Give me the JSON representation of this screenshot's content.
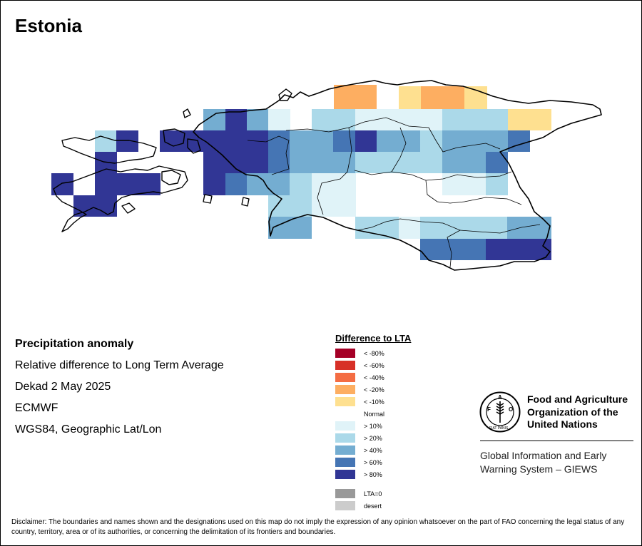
{
  "map": {
    "title": "Estonia",
    "anomaly_colors": {
      "lt_-80": "#a50026",
      "lt_-60": "#d73027",
      "lt_-40": "#f46d43",
      "lt_-20": "#fdae61",
      "lt_-10": "#fee090",
      "normal": "#ffffff",
      "gt_10": "#e0f3f8",
      "gt_20": "#abd9e9",
      "gt_40": "#74add1",
      "gt_60": "#4575b4",
      "gt_80": "#313695",
      "lta0": "#999999",
      "desert": "#cccccc"
    }
  },
  "info": {
    "title": "Precipitation anomaly",
    "subtitle": "Relative difference to Long Term Average",
    "period": "Dekad 2 May 2025",
    "source": "ECMWF",
    "projection": "WGS84, Geographic Lat/Lon"
  },
  "legend": {
    "title": "Difference to LTA",
    "items": [
      {
        "label": "< -80%",
        "color": "#a50026"
      },
      {
        "label": "< -60%",
        "color": "#d73027"
      },
      {
        "label": "< -40%",
        "color": "#f46d43"
      },
      {
        "label": "< -20%",
        "color": "#fdae61"
      },
      {
        "label": "< -10%",
        "color": "#fee090"
      },
      {
        "label": "Normal",
        "color": ""
      },
      {
        "label": "> 10%",
        "color": "#e0f3f8"
      },
      {
        "label": "> 20%",
        "color": "#abd9e9"
      },
      {
        "label": "> 40%",
        "color": "#74add1"
      },
      {
        "label": "> 60%",
        "color": "#4575b4"
      },
      {
        "label": "> 80%",
        "color": "#313695"
      },
      {
        "label": "LTA=0",
        "color": "#999999"
      },
      {
        "label": "desert",
        "color": "#cccccc"
      }
    ]
  },
  "branding": {
    "fao_line1": "Food and Agriculture",
    "fao_line2": "Organization of the",
    "fao_line3": "United Nations",
    "giews_line1": "Global Information and Early",
    "giews_line2": "Warning System – GIEWS",
    "logo_text": "FAO",
    "logo_motto": "FIAT PANIS"
  },
  "disclaimer": "Disclaimer: The boundaries and names shown and the designations used on this map do not imply the expression of any opinion whatsoever on the part of FAO concerning the legal status of any country, territory, area or of its authorities, or concerning the delimitation of its frontiers and boundaries."
}
